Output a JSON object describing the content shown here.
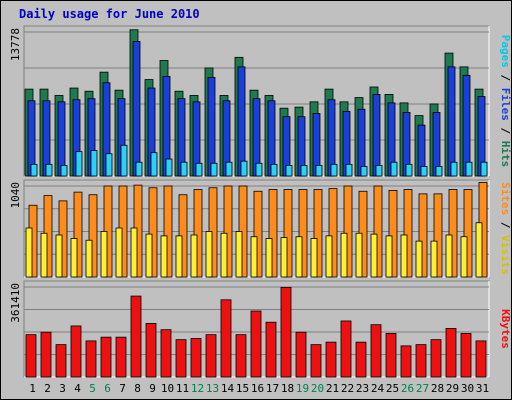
{
  "title": "Daily usage for June 2010",
  "colors": {
    "hits": "#1f7a4f",
    "files": "#1b3fd9",
    "pages": "#2ad3f5",
    "visits": "#ff8c1a",
    "sites": "#ffee33",
    "kbytes": "#ee1111",
    "weekend_day": "#007f50",
    "weekday_day": "#000000"
  },
  "chart_data": [
    {
      "type": "bar",
      "title": "Daily usage for June 2010",
      "ylabel_parts": [
        {
          "text": "Pages",
          "color": "#00c8e6"
        },
        {
          "text": " / ",
          "color": "#000000"
        },
        {
          "text": "Files",
          "color": "#1b3fd9"
        },
        {
          "text": " / ",
          "color": "#000000"
        },
        {
          "text": "Hits",
          "color": "#1f7a4f"
        }
      ],
      "ymax_label": "13778",
      "ylim": [
        0,
        13778
      ],
      "categories": [
        "1",
        "2",
        "3",
        "4",
        "5",
        "6",
        "7",
        "8",
        "9",
        "10",
        "11",
        "12",
        "13",
        "14",
        "15",
        "16",
        "17",
        "18",
        "19",
        "20",
        "21",
        "22",
        "23",
        "24",
        "25",
        "26",
        "27",
        "28",
        "29",
        "30",
        "31"
      ],
      "series": [
        {
          "name": "Hits",
          "values": [
            8200,
            8200,
            7600,
            8300,
            8000,
            9800,
            8100,
            13800,
            9100,
            10900,
            8000,
            7600,
            10200,
            7600,
            11200,
            8100,
            7600,
            6400,
            6500,
            7000,
            8200,
            7000,
            7400,
            8400,
            7700,
            6900,
            5700,
            6800,
            11600,
            10300,
            8200
          ]
        },
        {
          "name": "Files",
          "values": [
            7100,
            7100,
            7000,
            7200,
            7300,
            8800,
            7300,
            12700,
            8300,
            9400,
            7300,
            7000,
            9300,
            7100,
            10300,
            7300,
            7100,
            5600,
            5600,
            5900,
            7200,
            6100,
            6300,
            7700,
            6900,
            6000,
            4800,
            6000,
            10300,
            9500,
            7500
          ]
        },
        {
          "name": "Pages",
          "values": [
            1100,
            1100,
            1000,
            2300,
            2400,
            2100,
            2900,
            1300,
            2200,
            1600,
            1300,
            1200,
            1200,
            1300,
            1400,
            1200,
            1100,
            1000,
            1000,
            1000,
            1100,
            1100,
            900,
            1000,
            1300,
            1100,
            900,
            900,
            1300,
            1300,
            1300
          ]
        }
      ]
    },
    {
      "type": "bar",
      "ylabel_parts": [
        {
          "text": "Sites",
          "color": "#ff8c1a"
        },
        {
          "text": " / ",
          "color": "#000000"
        },
        {
          "text": "Visits",
          "color": "#d4c200"
        }
      ],
      "ymax_label": "1040",
      "ylim": [
        0,
        1040
      ],
      "categories": [
        "1",
        "2",
        "3",
        "4",
        "5",
        "6",
        "7",
        "8",
        "9",
        "10",
        "11",
        "12",
        "13",
        "14",
        "15",
        "16",
        "17",
        "18",
        "19",
        "20",
        "21",
        "22",
        "23",
        "24",
        "25",
        "26",
        "27",
        "28",
        "29",
        "30",
        "31"
      ],
      "series": [
        {
          "name": "Visits",
          "values": [
            820,
            930,
            870,
            970,
            940,
            1040,
            1040,
            1050,
            1020,
            1040,
            940,
            1000,
            1020,
            1040,
            1040,
            980,
            1000,
            1000,
            1000,
            1000,
            1010,
            1040,
            980,
            1040,
            990,
            1000,
            950,
            950,
            1000,
            1000,
            1080
          ]
        },
        {
          "name": "Sites",
          "values": [
            560,
            500,
            480,
            440,
            420,
            520,
            560,
            560,
            490,
            470,
            470,
            480,
            520,
            500,
            520,
            460,
            440,
            450,
            460,
            440,
            470,
            500,
            500,
            490,
            470,
            480,
            410,
            410,
            480,
            460,
            620
          ]
        }
      ]
    },
    {
      "type": "bar",
      "ylabel_parts": [
        {
          "text": "KBytes",
          "color": "#ee1111"
        }
      ],
      "ymax_label": "361410",
      "ylim": [
        0,
        361410
      ],
      "categories": [
        "1",
        "2",
        "3",
        "4",
        "5",
        "6",
        "7",
        "8",
        "9",
        "10",
        "11",
        "12",
        "13",
        "14",
        "15",
        "16",
        "17",
        "18",
        "19",
        "20",
        "21",
        "22",
        "23",
        "24",
        "25",
        "26",
        "27",
        "28",
        "29",
        "30",
        "31"
      ],
      "series": [
        {
          "name": "KBytes",
          "values": [
            170000,
            180000,
            130000,
            205000,
            145000,
            160000,
            160000,
            325000,
            215000,
            190000,
            150000,
            155000,
            170000,
            310000,
            170000,
            265000,
            220000,
            360000,
            180000,
            130000,
            140000,
            225000,
            140000,
            210000,
            175000,
            125000,
            130000,
            150000,
            195000,
            175000,
            145000
          ]
        }
      ]
    }
  ]
}
